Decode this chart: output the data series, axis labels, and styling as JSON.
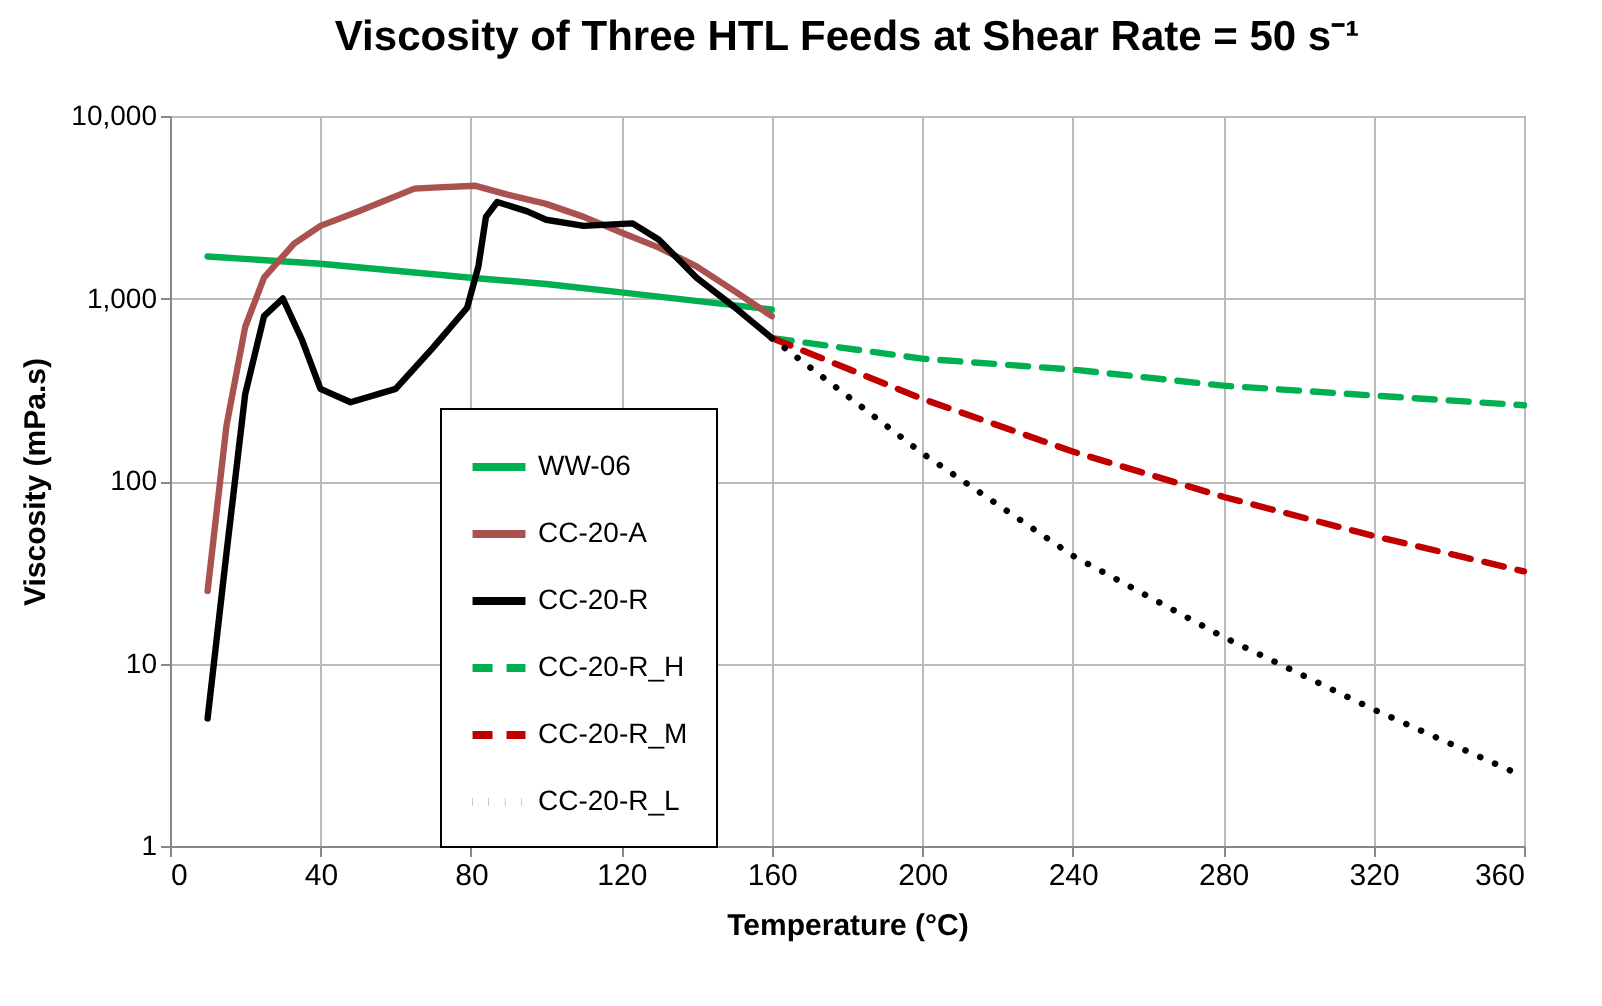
{
  "chart_data": {
    "type": "line",
    "title": "Viscosity of Three HTL Feeds at Shear Rate = 50 s⁻¹",
    "xlabel": "Temperature (°C)",
    "ylabel": "Viscosity (mPa.s)",
    "xlim": [
      0,
      360
    ],
    "xticks": [
      0,
      40,
      80,
      120,
      160,
      200,
      240,
      280,
      320,
      360
    ],
    "ylim": [
      1,
      10000
    ],
    "yticks": [
      1,
      10,
      100,
      {
        "value": 1000,
        "label": "1,000"
      },
      {
        "value": 10000,
        "label": "10,000"
      }
    ],
    "log": "y",
    "grid": true,
    "legend": "bottom left",
    "marker": "none",
    "series": [
      {
        "name": "WW-06",
        "color": "#00b050",
        "line_style": "solid",
        "x": [
          10,
          40,
          80,
          100,
          120,
          160
        ],
        "values": [
          1700,
          1550,
          1300,
          1200,
          1080,
          870
        ]
      },
      {
        "name": "CC-20-A",
        "color": "#a9524f",
        "line_style": "solid",
        "x": [
          10,
          15,
          20,
          25,
          33,
          40,
          50,
          65,
          70,
          81,
          90,
          100,
          110,
          120,
          130,
          140,
          150,
          160
        ],
        "values": [
          25,
          200,
          700,
          1300,
          2000,
          2500,
          3000,
          4000,
          4050,
          4150,
          3700,
          3300,
          2800,
          2300,
          1900,
          1500,
          1100,
          800
        ]
      },
      {
        "name": "CC-20-R",
        "color": "#000000",
        "line_style": "solid",
        "x": [
          10,
          15,
          20,
          25,
          30,
          35,
          40,
          48,
          60,
          70,
          79,
          82,
          84,
          87,
          95,
          100,
          110,
          123,
          130,
          140,
          150,
          160
        ],
        "values": [
          5,
          40,
          300,
          800,
          1000,
          600,
          320,
          270,
          320,
          540,
          890,
          1500,
          2800,
          3380,
          3000,
          2700,
          2500,
          2580,
          2100,
          1300,
          900,
          607
        ]
      },
      {
        "name": "CC-20-R_H",
        "color": "#00b050",
        "line_style": "dashed",
        "x": [
          160,
          200,
          240,
          280,
          320,
          360
        ],
        "values": [
          607,
          468,
          408,
          333,
          294,
          260
        ]
      },
      {
        "name": "CC-20-R_M",
        "color": "#c00000",
        "line_style": "dashed",
        "x": [
          160,
          200,
          240,
          280,
          320,
          360
        ],
        "values": [
          607,
          282,
          145,
          82,
          50,
          32
        ]
      },
      {
        "name": "CC-20-R_L",
        "color": "#000000",
        "line_style": "dotted",
        "x": [
          160,
          200,
          240,
          280,
          320,
          360
        ],
        "values": [
          607,
          142,
          39,
          14,
          5.6,
          2.4
        ]
      }
    ]
  }
}
